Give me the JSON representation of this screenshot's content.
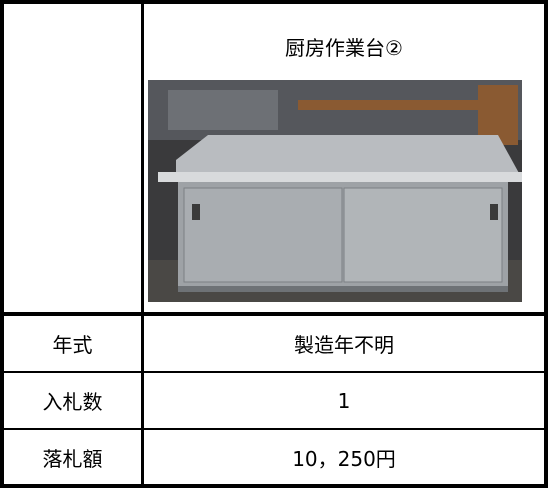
{
  "header": {
    "title": "厨房作業台②"
  },
  "table": {
    "rows": [
      [
        "年式",
        "製造年不明"
      ],
      [
        "入札数",
        "1"
      ],
      [
        "落札額",
        "10，250円"
      ]
    ]
  }
}
